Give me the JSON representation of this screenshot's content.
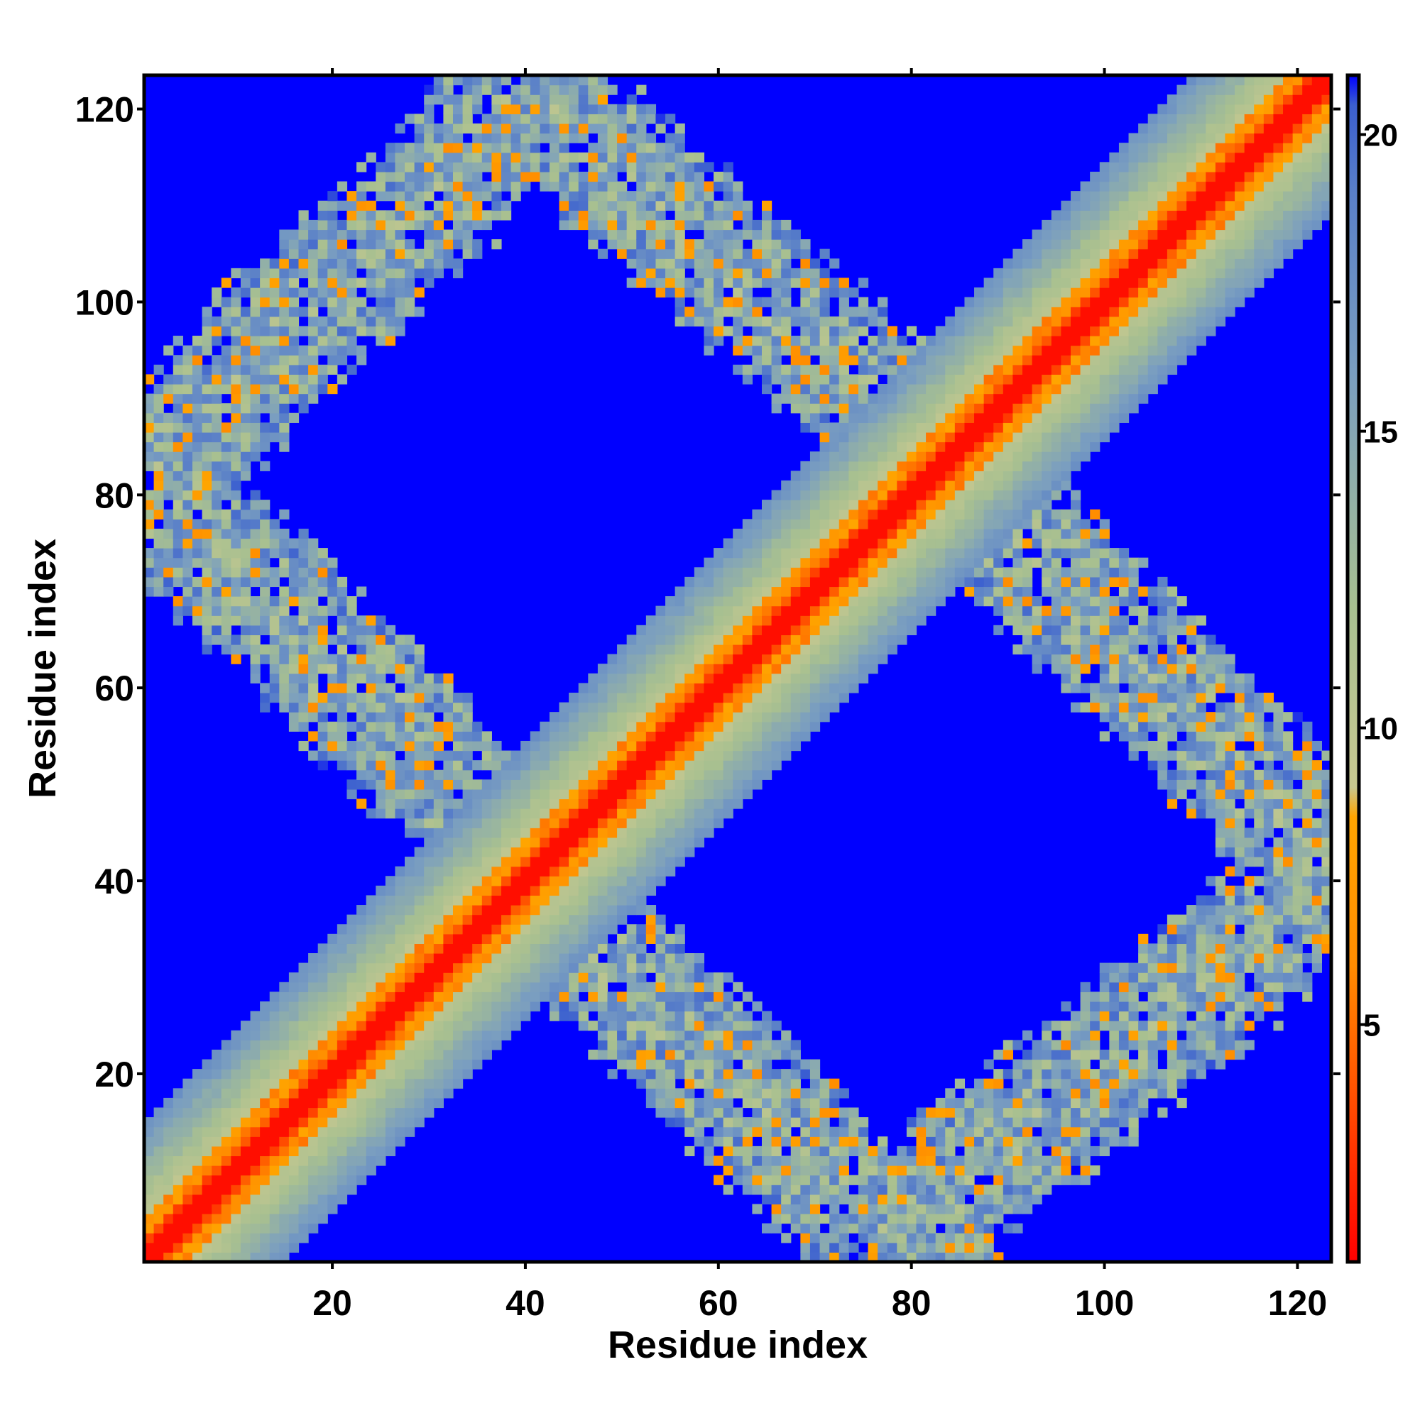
{
  "chart_data": {
    "type": "heatmap",
    "title": "",
    "xlabel": "Residue index",
    "ylabel": "Residue index",
    "n_residues": 123,
    "xlim": [
      1,
      123
    ],
    "ylim": [
      1,
      123
    ],
    "x_ticks": [
      20,
      40,
      60,
      80,
      100,
      120
    ],
    "y_ticks": [
      20,
      40,
      60,
      80,
      100,
      120
    ],
    "colorbar": {
      "min": 1,
      "max": 21,
      "ticks": [
        5,
        10,
        15,
        20
      ],
      "stops": [
        {
          "value": 1,
          "color": "#ff0000"
        },
        {
          "value": 4,
          "color": "#ff5500"
        },
        {
          "value": 6,
          "color": "#ff8c00"
        },
        {
          "value": 8.5,
          "color": "#ffa500"
        },
        {
          "value": 9,
          "color": "#c8c890"
        },
        {
          "value": 12,
          "color": "#a8c090"
        },
        {
          "value": 16,
          "color": "#7a9ec0"
        },
        {
          "value": 19,
          "color": "#5a80c8"
        },
        {
          "value": 20.5,
          "color": "#3b5fd0"
        },
        {
          "value": 21,
          "color": "#0000ff"
        }
      ]
    },
    "background_color": "#0000ff",
    "structure": {
      "diagonal_band_halfwidth": 14,
      "off_diagonal_paths": [
        [
          [
            1,
            80
          ],
          [
            14,
            96
          ],
          [
            30,
            110
          ],
          [
            40,
            122
          ]
        ],
        [
          [
            40,
            122
          ],
          [
            56,
            108
          ],
          [
            70,
            96
          ],
          [
            80,
            86
          ],
          [
            90,
            76
          ],
          [
            100,
            66
          ],
          [
            112,
            54
          ],
          [
            123,
            42
          ]
        ],
        [
          [
            123,
            42
          ],
          [
            114,
            32
          ],
          [
            104,
            24
          ],
          [
            94,
            16
          ],
          [
            86,
            10
          ],
          [
            80,
            2
          ]
        ],
        [
          [
            80,
            2
          ],
          [
            70,
            10
          ],
          [
            60,
            20
          ],
          [
            50,
            30
          ],
          [
            40,
            40
          ],
          [
            30,
            52
          ],
          [
            20,
            62
          ],
          [
            10,
            72
          ],
          [
            1,
            80
          ]
        ]
      ],
      "off_diagonal_halfwidth": 8
    }
  }
}
